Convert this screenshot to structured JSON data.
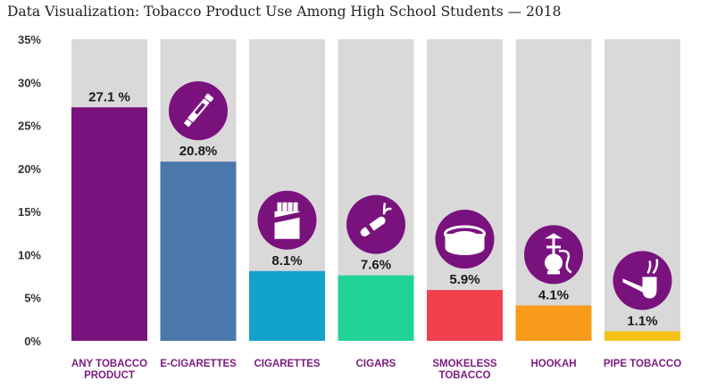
{
  "chart_data": {
    "type": "bar",
    "title": "Data Visualization: Tobacco Product Use Among High School Students — 2018",
    "xlabel": "",
    "ylabel": "",
    "ylim": [
      0,
      35
    ],
    "y_ticks": [
      "0%",
      "5%",
      "10%",
      "15%",
      "20%",
      "25%",
      "30%",
      "35%"
    ],
    "y_tick_values": [
      0,
      5,
      10,
      15,
      20,
      25,
      30,
      35
    ],
    "grid": false,
    "legend": "none",
    "categories": [
      [
        "ANY TOBACCO",
        "PRODUCT"
      ],
      [
        "E-CIGARETTES"
      ],
      [
        "CIGARETTES"
      ],
      [
        "CIGARS"
      ],
      [
        "SMOKELESS",
        "TOBACCO"
      ],
      [
        "HOOKAH"
      ],
      [
        "PIPE TOBACCO"
      ]
    ],
    "values": [
      27.1,
      20.8,
      8.1,
      7.6,
      5.9,
      4.1,
      1.1
    ],
    "value_labels": [
      "27.1 %",
      "20.8%",
      "8.1%",
      "7.6%",
      "5.9%",
      "4.1%",
      "1.1%"
    ],
    "colors": [
      "#7a127e",
      "#4a78aa",
      "#13a2cc",
      "#22d396",
      "#f2414e",
      "#f89a1a",
      "#f6c21a"
    ],
    "icons": [
      "",
      "e-cigarette-icon",
      "cigarette-pack-icon",
      "cigar-icon",
      "smokeless-tobacco-tin-icon",
      "hookah-icon",
      "pipe-icon"
    ],
    "background_column_color": "#d9d9d9",
    "icon_circle_color": "#7a127e",
    "category_label_color": "#7a1c7e"
  }
}
